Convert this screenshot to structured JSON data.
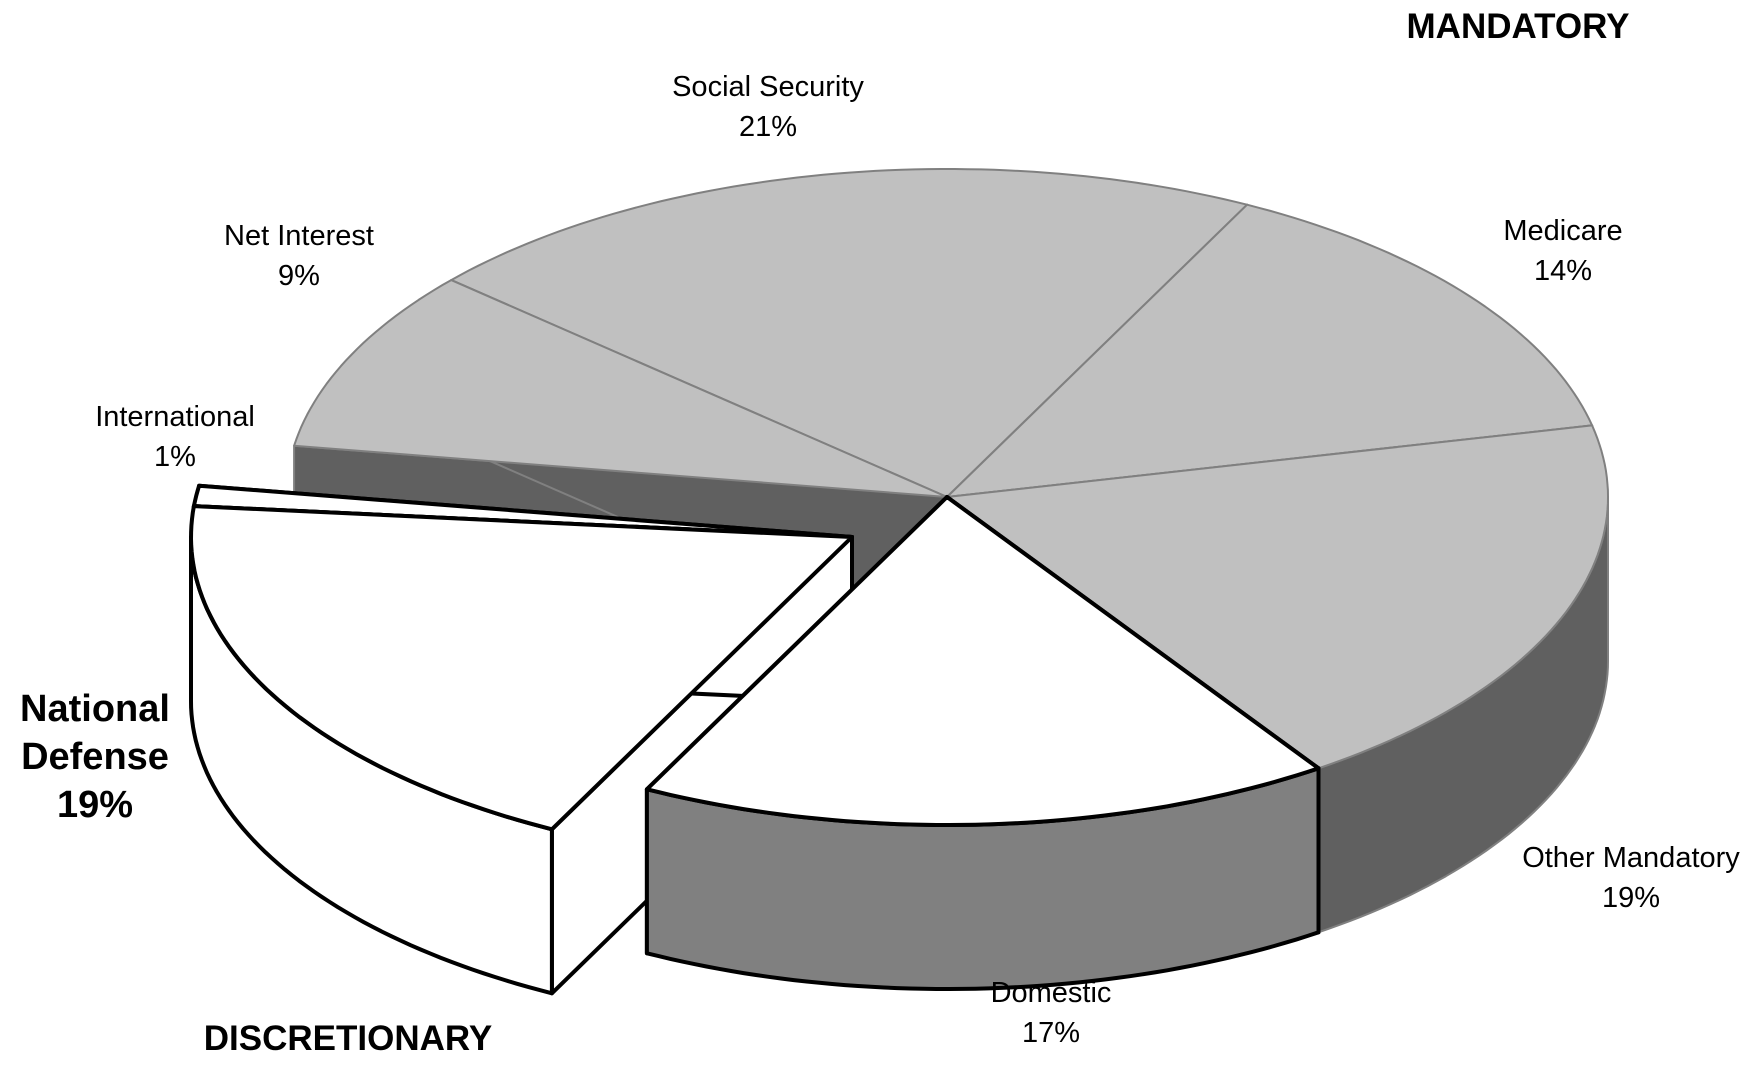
{
  "chart_data": {
    "type": "pie3d",
    "categories": [
      "Medicare",
      "Other Mandatory",
      "Domestic",
      "National Defense",
      "International",
      "Net Interest",
      "Social Security"
    ],
    "values": [
      14,
      19,
      17,
      19,
      1,
      9,
      21
    ],
    "value_labels": [
      "14%",
      "19%",
      "17%",
      "19%",
      "1%",
      "9%",
      "21%"
    ],
    "colors": [
      "#c0c0c0",
      "#c0c0c0",
      "#ffffff",
      "#ffffff",
      "#ffffff",
      "#c0c0c0",
      "#c0c0c0"
    ],
    "side_colors": [
      "#606060",
      "#606060",
      "#808080",
      "#ffffff",
      "#808080",
      "#606060",
      "#606060"
    ],
    "edge_colors": [
      "#808080",
      "#808080",
      "#000000",
      "#000000",
      "#000000",
      "#808080",
      "#808080"
    ],
    "group_labels": [
      "MANDATORY",
      "DISCRETIONARY"
    ]
  }
}
